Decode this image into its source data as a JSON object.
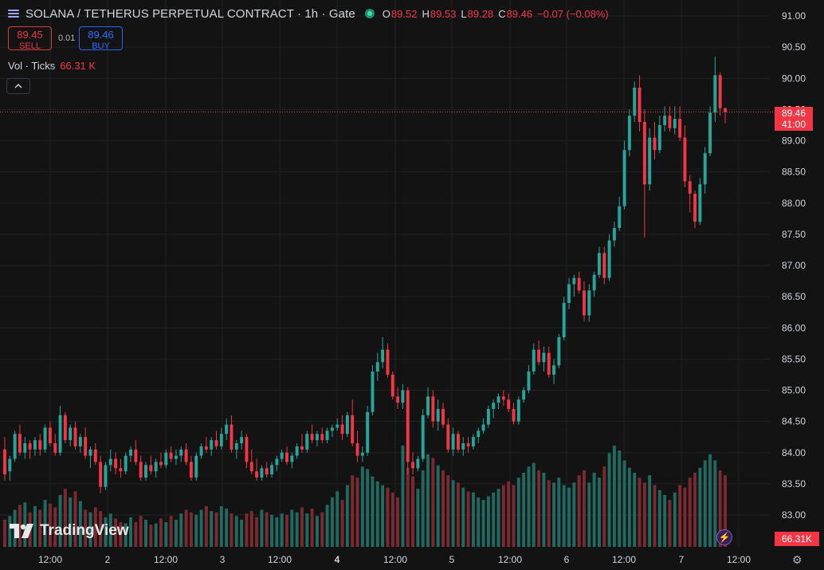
{
  "header": {
    "title": "SOLANA / TETHERUS PERPETUAL CONTRACT · 1h · Gate",
    "ohlc": [
      {
        "key": "O",
        "value": "89.52"
      },
      {
        "key": "H",
        "value": "89.53"
      },
      {
        "key": "L",
        "value": "89.28"
      },
      {
        "key": "C",
        "value": "89.46"
      },
      {
        "key": "",
        "value": "−0.07 (−0.08%)"
      }
    ]
  },
  "trade": {
    "sell_price": "89.45",
    "sell_label": "SELL",
    "spread": "0.01",
    "buy_price": "89.46",
    "buy_label": "BUY"
  },
  "volume": {
    "label": "Vol · Ticks",
    "value": "66.31 K"
  },
  "last_price": {
    "price": "89.46",
    "countdown": "41:00"
  },
  "volume_tag": "66.31K",
  "branding": "TradingView",
  "icons": {
    "symbol": "menu-icon",
    "status": "live-dot-icon",
    "collapse": "chevron-up-icon",
    "bolt": "lightning-icon",
    "settings": "gear-icon"
  },
  "colors": {
    "background": "#131313",
    "up": "#26a69a",
    "down": "#f23645",
    "grid": "#222326",
    "volume_up": "#1f6b62",
    "volume_down": "#7a2a30"
  },
  "chart_data": {
    "type": "candlestick",
    "y_axis": {
      "ticks": [
        "91.00",
        "90.50",
        "90.00",
        "89.50",
        "89.00",
        "88.50",
        "88.00",
        "87.50",
        "87.00",
        "86.50",
        "86.00",
        "85.50",
        "85.00",
        "84.50",
        "84.00",
        "83.50",
        "83.00"
      ],
      "range": [
        82.7,
        91.05
      ]
    },
    "x_axis": {
      "ticks": [
        "12:00",
        "2",
        "12:00",
        "3",
        "12:00",
        "4",
        "12:00",
        "5",
        "12:00",
        "6",
        "12:00",
        "7",
        "12:00"
      ]
    },
    "candles": [
      [
        84.05,
        84.25,
        83.55,
        83.65
      ],
      [
        83.7,
        83.95,
        83.55,
        83.9
      ],
      [
        83.9,
        84.35,
        83.85,
        84.3
      ],
      [
        84.3,
        84.45,
        83.95,
        84.0
      ],
      [
        84.0,
        84.25,
        83.9,
        84.15
      ],
      [
        84.15,
        84.2,
        83.9,
        84.05
      ],
      [
        84.05,
        84.25,
        83.95,
        84.2
      ],
      [
        84.2,
        84.3,
        83.95,
        84.05
      ],
      [
        84.05,
        84.45,
        84.0,
        84.4
      ],
      [
        84.4,
        84.5,
        84.1,
        84.15
      ],
      [
        84.15,
        84.3,
        83.95,
        84.0
      ],
      [
        84.0,
        84.75,
        83.95,
        84.6
      ],
      [
        84.6,
        84.65,
        84.15,
        84.2
      ],
      [
        84.2,
        84.45,
        84.1,
        84.4
      ],
      [
        84.4,
        84.5,
        84.05,
        84.1
      ],
      [
        84.1,
        84.3,
        84.0,
        84.25
      ],
      [
        84.25,
        84.4,
        83.9,
        83.95
      ],
      [
        83.95,
        84.1,
        83.75,
        84.05
      ],
      [
        84.05,
        84.15,
        83.8,
        83.85
      ],
      [
        83.85,
        83.95,
        83.35,
        83.45
      ],
      [
        83.45,
        83.85,
        83.4,
        83.8
      ],
      [
        83.8,
        84.05,
        83.7,
        83.9
      ],
      [
        83.9,
        84.0,
        83.65,
        83.75
      ],
      [
        83.75,
        83.9,
        83.6,
        83.7
      ],
      [
        83.7,
        84.0,
        83.65,
        83.95
      ],
      [
        83.95,
        84.1,
        83.85,
        84.05
      ],
      [
        84.05,
        84.2,
        83.8,
        83.85
      ],
      [
        83.85,
        83.95,
        83.55,
        83.6
      ],
      [
        83.6,
        83.85,
        83.55,
        83.8
      ],
      [
        83.8,
        83.95,
        83.65,
        83.7
      ],
      [
        83.7,
        83.9,
        83.6,
        83.85
      ],
      [
        83.85,
        84.0,
        83.75,
        83.8
      ],
      [
        83.8,
        84.05,
        83.75,
        84.0
      ],
      [
        84.0,
        84.1,
        83.85,
        83.9
      ],
      [
        83.9,
        84.05,
        83.8,
        83.95
      ],
      [
        83.95,
        84.1,
        83.85,
        84.05
      ],
      [
        84.05,
        84.15,
        83.8,
        83.85
      ],
      [
        83.85,
        83.95,
        83.55,
        83.6
      ],
      [
        83.6,
        84.0,
        83.55,
        83.95
      ],
      [
        83.95,
        84.15,
        83.9,
        84.1
      ],
      [
        84.1,
        84.25,
        84.0,
        84.05
      ],
      [
        84.05,
        84.25,
        83.95,
        84.2
      ],
      [
        84.2,
        84.35,
        84.05,
        84.1
      ],
      [
        84.1,
        84.4,
        84.05,
        84.3
      ],
      [
        84.3,
        84.55,
        84.2,
        84.45
      ],
      [
        84.45,
        84.6,
        84.0,
        84.05
      ],
      [
        84.05,
        84.2,
        83.9,
        84.15
      ],
      [
        84.15,
        84.35,
        84.05,
        84.25
      ],
      [
        84.25,
        84.3,
        83.75,
        83.85
      ],
      [
        83.85,
        84.05,
        83.65,
        83.7
      ],
      [
        83.7,
        83.9,
        83.55,
        83.6
      ],
      [
        83.6,
        83.8,
        83.55,
        83.75
      ],
      [
        83.75,
        83.85,
        83.6,
        83.65
      ],
      [
        83.65,
        83.85,
        83.6,
        83.8
      ],
      [
        83.8,
        83.95,
        83.7,
        83.9
      ],
      [
        83.9,
        84.05,
        83.85,
        84.0
      ],
      [
        84.0,
        84.1,
        83.8,
        83.85
      ],
      [
        83.85,
        84.0,
        83.75,
        83.95
      ],
      [
        83.95,
        84.15,
        83.9,
        84.1
      ],
      [
        84.1,
        84.3,
        84.0,
        84.05
      ],
      [
        84.05,
        84.35,
        84.0,
        84.3
      ],
      [
        84.3,
        84.45,
        84.15,
        84.2
      ],
      [
        84.2,
        84.35,
        84.1,
        84.3
      ],
      [
        84.3,
        84.4,
        84.15,
        84.2
      ],
      [
        84.2,
        84.4,
        84.15,
        84.35
      ],
      [
        84.35,
        84.45,
        84.25,
        84.4
      ],
      [
        84.4,
        84.55,
        84.35,
        84.45
      ],
      [
        84.45,
        84.6,
        84.2,
        84.3
      ],
      [
        84.3,
        84.65,
        84.25,
        84.6
      ],
      [
        84.6,
        84.85,
        84.1,
        84.15
      ],
      [
        84.15,
        84.35,
        83.85,
        83.95
      ],
      [
        83.95,
        84.1,
        83.85,
        84.0
      ],
      [
        84.0,
        84.75,
        83.95,
        84.65
      ],
      [
        84.65,
        85.4,
        84.6,
        85.3
      ],
      [
        85.3,
        85.6,
        85.15,
        85.45
      ],
      [
        85.45,
        85.85,
        85.35,
        85.65
      ],
      [
        85.65,
        85.75,
        85.2,
        85.25
      ],
      [
        85.25,
        85.3,
        84.85,
        84.9
      ],
      [
        84.9,
        85.05,
        84.7,
        84.8
      ],
      [
        84.8,
        85.1,
        84.7,
        85.0
      ],
      [
        85.0,
        85.05,
        83.65,
        83.85
      ],
      [
        83.85,
        84.0,
        83.65,
        83.75
      ],
      [
        83.75,
        83.95,
        83.7,
        83.9
      ],
      [
        83.9,
        84.7,
        83.85,
        84.6
      ],
      [
        84.6,
        85.05,
        84.55,
        84.9
      ],
      [
        84.9,
        85.0,
        84.4,
        84.5
      ],
      [
        84.5,
        84.85,
        84.35,
        84.7
      ],
      [
        84.7,
        84.8,
        84.4,
        84.45
      ],
      [
        84.45,
        84.55,
        84.0,
        84.05
      ],
      [
        84.05,
        84.4,
        83.95,
        84.3
      ],
      [
        84.3,
        84.35,
        84.0,
        84.05
      ],
      [
        84.05,
        84.25,
        83.95,
        84.15
      ],
      [
        84.15,
        84.25,
        84.0,
        84.1
      ],
      [
        84.1,
        84.3,
        84.05,
        84.25
      ],
      [
        84.25,
        84.4,
        84.15,
        84.35
      ],
      [
        84.35,
        84.55,
        84.3,
        84.45
      ],
      [
        84.45,
        84.75,
        84.4,
        84.7
      ],
      [
        84.7,
        84.85,
        84.55,
        84.8
      ],
      [
        84.8,
        84.95,
        84.7,
        84.9
      ],
      [
        84.9,
        85.0,
        84.75,
        84.85
      ],
      [
        84.85,
        84.95,
        84.65,
        84.7
      ],
      [
        84.7,
        84.8,
        84.45,
        84.5
      ],
      [
        84.5,
        84.9,
        84.45,
        84.85
      ],
      [
        84.85,
        85.05,
        84.8,
        85.0
      ],
      [
        85.0,
        85.4,
        84.95,
        85.3
      ],
      [
        85.3,
        85.75,
        85.25,
        85.65
      ],
      [
        85.65,
        85.8,
        85.4,
        85.45
      ],
      [
        85.45,
        85.7,
        85.3,
        85.6
      ],
      [
        85.6,
        85.7,
        85.2,
        85.25
      ],
      [
        85.25,
        85.5,
        85.1,
        85.4
      ],
      [
        85.4,
        85.9,
        85.35,
        85.85
      ],
      [
        85.85,
        86.5,
        85.8,
        86.4
      ],
      [
        86.4,
        86.8,
        86.3,
        86.7
      ],
      [
        86.7,
        86.85,
        86.5,
        86.8
      ],
      [
        86.8,
        86.9,
        86.55,
        86.6
      ],
      [
        86.6,
        86.75,
        86.1,
        86.2
      ],
      [
        86.2,
        86.7,
        86.1,
        86.6
      ],
      [
        86.6,
        86.9,
        86.5,
        86.85
      ],
      [
        86.85,
        87.3,
        86.8,
        87.2
      ],
      [
        87.2,
        87.3,
        86.7,
        86.8
      ],
      [
        86.8,
        87.5,
        86.75,
        87.4
      ],
      [
        87.4,
        87.7,
        87.3,
        87.6
      ],
      [
        87.6,
        88.1,
        87.55,
        87.95
      ],
      [
        87.95,
        89.0,
        87.9,
        88.85
      ],
      [
        88.85,
        89.5,
        88.75,
        89.4
      ],
      [
        89.4,
        89.95,
        89.3,
        89.85
      ],
      [
        89.85,
        90.05,
        89.15,
        89.3
      ],
      [
        89.3,
        89.5,
        87.45,
        88.3
      ],
      [
        88.3,
        89.2,
        88.2,
        89.05
      ],
      [
        89.05,
        89.3,
        88.7,
        88.85
      ],
      [
        88.85,
        89.4,
        88.8,
        89.25
      ],
      [
        89.25,
        89.55,
        89.15,
        89.4
      ],
      [
        89.4,
        89.55,
        89.15,
        89.2
      ],
      [
        89.2,
        89.55,
        89.1,
        89.35
      ],
      [
        89.35,
        89.55,
        89.0,
        89.05
      ],
      [
        89.05,
        89.25,
        88.25,
        88.35
      ],
      [
        88.35,
        88.45,
        87.85,
        88.15
      ],
      [
        88.15,
        88.2,
        87.6,
        87.7
      ],
      [
        87.7,
        88.4,
        87.65,
        88.3
      ],
      [
        88.3,
        88.9,
        88.15,
        88.8
      ],
      [
        88.8,
        89.55,
        88.75,
        89.45
      ],
      [
        89.45,
        90.35,
        89.3,
        90.05
      ],
      [
        90.05,
        90.1,
        89.4,
        89.52
      ],
      [
        89.52,
        89.53,
        89.28,
        89.46
      ]
    ],
    "volume": [
      22,
      25,
      30,
      34,
      36,
      28,
      33,
      30,
      38,
      35,
      32,
      42,
      47,
      40,
      45,
      37,
      30,
      28,
      32,
      29,
      24,
      27,
      23,
      20,
      19,
      24,
      20,
      25,
      22,
      18,
      19,
      23,
      20,
      25,
      22,
      27,
      30,
      28,
      26,
      30,
      33,
      29,
      28,
      33,
      31,
      27,
      25,
      22,
      27,
      29,
      24,
      30,
      28,
      26,
      24,
      27,
      26,
      30,
      28,
      32,
      27,
      31,
      25,
      28,
      34,
      40,
      45,
      38,
      50,
      58,
      56,
      65,
      63,
      57,
      53,
      50,
      48,
      44,
      40,
      82,
      64,
      57,
      47,
      62,
      75,
      72,
      66,
      62,
      58,
      54,
      52,
      48,
      45,
      44,
      40,
      38,
      41,
      44,
      47,
      50,
      53,
      50,
      56,
      60,
      65,
      68,
      62,
      60,
      54,
      52,
      56,
      50,
      48,
      52,
      58,
      62,
      52,
      60,
      56,
      65,
      76,
      82,
      78,
      70,
      64,
      60,
      56,
      52,
      58,
      50,
      46,
      42,
      38,
      44,
      50,
      48,
      56,
      60,
      64,
      70,
      75,
      70,
      62,
      58
    ]
  }
}
